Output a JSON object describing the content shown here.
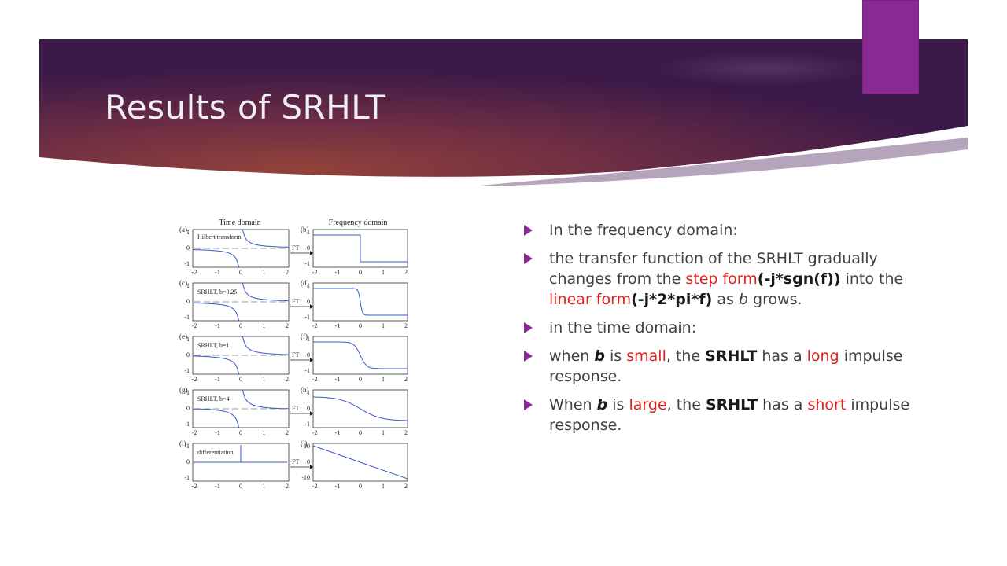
{
  "slide": {
    "title": "Results of SRHLT"
  },
  "colors": {
    "accent": "#8a2a93",
    "banner_dark": "#3a1848",
    "banner_warm": "#8b3a38",
    "highlight_red": "#e0201a",
    "body_text": "#404040",
    "curve_blue": "#3a57c8"
  },
  "figure": {
    "header_time": "Time domain",
    "header_freq": "Frequency domain",
    "ft_label": "FT",
    "rows": [
      {
        "left_letter": "(a)",
        "right_letter": "(b)",
        "label": "Hilbert transform"
      },
      {
        "left_letter": "(c)",
        "right_letter": "(d)",
        "label": "SRHLT, b=0.25"
      },
      {
        "left_letter": "(e)",
        "right_letter": "(f)",
        "label": "SRHLT, b=1"
      },
      {
        "left_letter": "(g)",
        "right_letter": "(h)",
        "label": "SRHLT, b=4"
      },
      {
        "left_letter": "(i)",
        "right_letter": "(j)",
        "label": "differentiation"
      }
    ],
    "x_ticks": [
      "-2",
      "-1",
      "0",
      "1",
      "2"
    ],
    "y_ticks_time": [
      "1",
      "0",
      "-1"
    ],
    "y_ticks_freq": [
      "1",
      "0",
      "-1"
    ],
    "y_ticks_last": [
      "10",
      "0",
      "-10"
    ]
  },
  "bullets": {
    "b1": "In the frequency domain:",
    "b2_p1": "the transfer function of the SRHLT gradually changes from the ",
    "b2_step": "step form",
    "b2_f1": "(-j*sgn(f))",
    "b2_p2": " into the ",
    "b2_linear": "linear form",
    "b2_f2": "(-j*2*pi*f)",
    "b2_p3": " as ",
    "b2_b": "b",
    "b2_p4": " grows.",
    "b3": "in the time domain:",
    "b4_p1": " when ",
    "b4_b": "b",
    "b4_p2": " is ",
    "b4_small": "small",
    "b4_p3": ", the ",
    "b4_srhlt": "SRHLT",
    "b4_p4": " has a ",
    "b4_long": "long",
    "b4_p5": " impulse response.",
    "b5_p1": "When ",
    "b5_b": "b",
    "b5_p2": " is ",
    "b5_large": "large",
    "b5_p3": ", the ",
    "b5_srhlt": "SRHLT",
    "b5_p4": " has a ",
    "b5_short": "short",
    "b5_p5": " impulse response."
  }
}
